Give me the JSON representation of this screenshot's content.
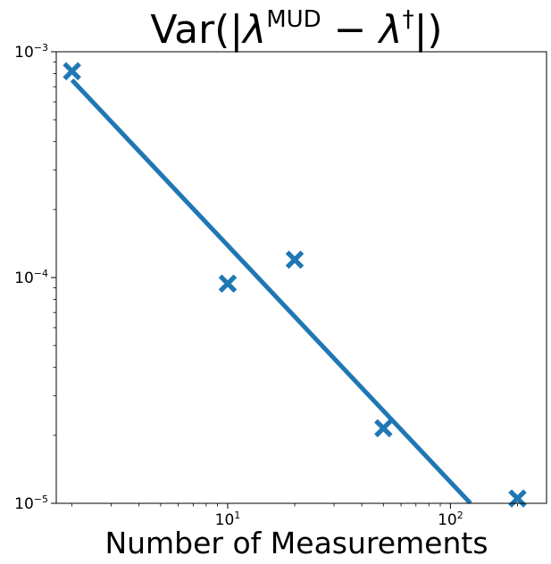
{
  "chart_data": {
    "type": "scatter",
    "title": {
      "base": "Var(|",
      "sym1": "λ",
      "sup1": "MUD",
      "op": " − ",
      "sym2": "λ",
      "sup2": "†",
      "end": "|)"
    },
    "xlabel": "Number of Measurements",
    "ylabel": "",
    "xscale": "log",
    "yscale": "log",
    "xlim": [
      1.7,
      270
    ],
    "ylim": [
      1e-05,
      0.001
    ],
    "xticks": [
      {
        "base": "10",
        "exp": "1",
        "value": 10
      },
      {
        "base": "10",
        "exp": "2",
        "value": 100
      }
    ],
    "yticks": [
      {
        "base": "10",
        "exp": "−5",
        "value": 1e-05
      },
      {
        "base": "10",
        "exp": "−4",
        "value": 0.0001
      },
      {
        "base": "10",
        "exp": "−3",
        "value": 0.001
      }
    ],
    "grid": false,
    "series": [
      {
        "kind": "scatter",
        "marker": "X",
        "color": "#1f77b4",
        "x": [
          2,
          10,
          20,
          50,
          200
        ],
        "y": [
          0.00082,
          9.4e-05,
          0.00012,
          2.15e-05,
          1.05e-05
        ]
      },
      {
        "kind": "line",
        "color": "#1f77b4",
        "x": [
          2,
          123
        ],
        "y": [
          0.00075,
          1e-05
        ]
      }
    ]
  }
}
